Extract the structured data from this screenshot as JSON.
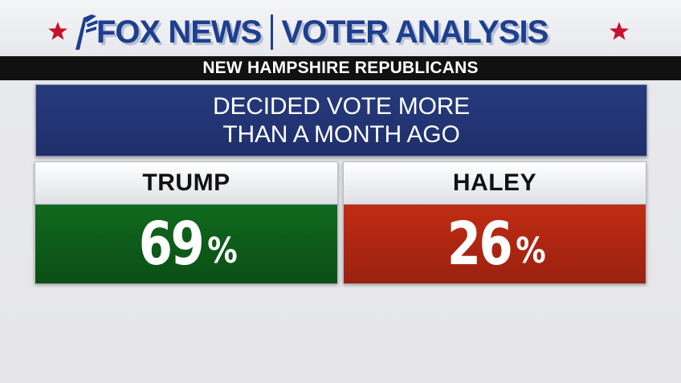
{
  "header": {
    "brand": "FOX NEWS",
    "section": "VOTER ANALYSIS",
    "star_color": "#c8102e",
    "brand_color": "#1e3f8f"
  },
  "subheader": {
    "text": "NEW HAMPSHIRE REPUBLICANS"
  },
  "question": {
    "lines": [
      "DECIDED VOTE MORE",
      "THAN A MONTH AGO"
    ]
  },
  "candidates": [
    {
      "name": "TRUMP",
      "value": "69",
      "unit": "%",
      "color": "#0d5a19"
    },
    {
      "name": "HALEY",
      "value": "26",
      "unit": "%",
      "color": "#a92511"
    }
  ]
}
